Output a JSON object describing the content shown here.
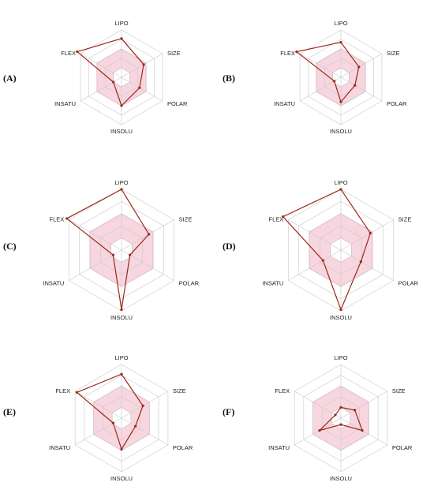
{
  "figure": {
    "axes": [
      "LIPO",
      "SIZE",
      "POLAR",
      "INSOLU",
      "INSATU",
      "FLEX"
    ],
    "colors": {
      "grid": "#c9c9c9",
      "optimal_fill": "#f7d6e0",
      "optimal_stroke": "#e7a9bc",
      "series": "#9b2818"
    }
  },
  "chart_data": [
    {
      "type": "radar",
      "panel": "(A)",
      "axes": [
        "LIPO",
        "SIZE",
        "POLAR",
        "INSOLU",
        "INSATU",
        "FLEX"
      ],
      "rings": 5,
      "optimal_range": [
        1,
        3
      ],
      "values": [
        4.1,
        2.7,
        2.2,
        3.0,
        1.0,
        5.4
      ]
    },
    {
      "type": "radar",
      "panel": "(B)",
      "axes": [
        "LIPO",
        "SIZE",
        "POLAR",
        "INSOLU",
        "INSATU",
        "FLEX"
      ],
      "rings": 5,
      "optimal_range": [
        1,
        3
      ],
      "values": [
        3.7,
        2.2,
        1.7,
        2.6,
        0.8,
        5.4
      ]
    },
    {
      "type": "radar",
      "panel": "(C)",
      "axes": [
        "LIPO",
        "SIZE",
        "POLAR",
        "INSOLU",
        "INSATU",
        "FLEX"
      ],
      "rings": 5,
      "optimal_range": [
        1,
        3
      ],
      "values": [
        5.0,
        2.6,
        0.8,
        4.9,
        0.8,
        5.2
      ]
    },
    {
      "type": "radar",
      "panel": "(D)",
      "axes": [
        "LIPO",
        "SIZE",
        "POLAR",
        "INSOLU",
        "INSATU",
        "FLEX"
      ],
      "rings": 5,
      "optimal_range": [
        1,
        3
      ],
      "values": [
        5.0,
        2.8,
        1.9,
        4.9,
        1.7,
        5.5
      ]
    },
    {
      "type": "radar",
      "panel": "(E)",
      "axes": [
        "LIPO",
        "SIZE",
        "POLAR",
        "INSOLU",
        "INSATU",
        "FLEX"
      ],
      "rings": 5,
      "optimal_range": [
        1,
        3
      ],
      "values": [
        4.1,
        2.3,
        1.5,
        2.9,
        0.9,
        4.8
      ]
    },
    {
      "type": "radar",
      "panel": "(F)",
      "axes": [
        "LIPO",
        "SIZE",
        "POLAR",
        "INSOLU",
        "INSATU",
        "FLEX"
      ],
      "rings": 5,
      "optimal_range": [
        1,
        3
      ],
      "values": [
        1.0,
        1.5,
        2.3,
        0.6,
        2.3,
        0.6
      ]
    }
  ]
}
